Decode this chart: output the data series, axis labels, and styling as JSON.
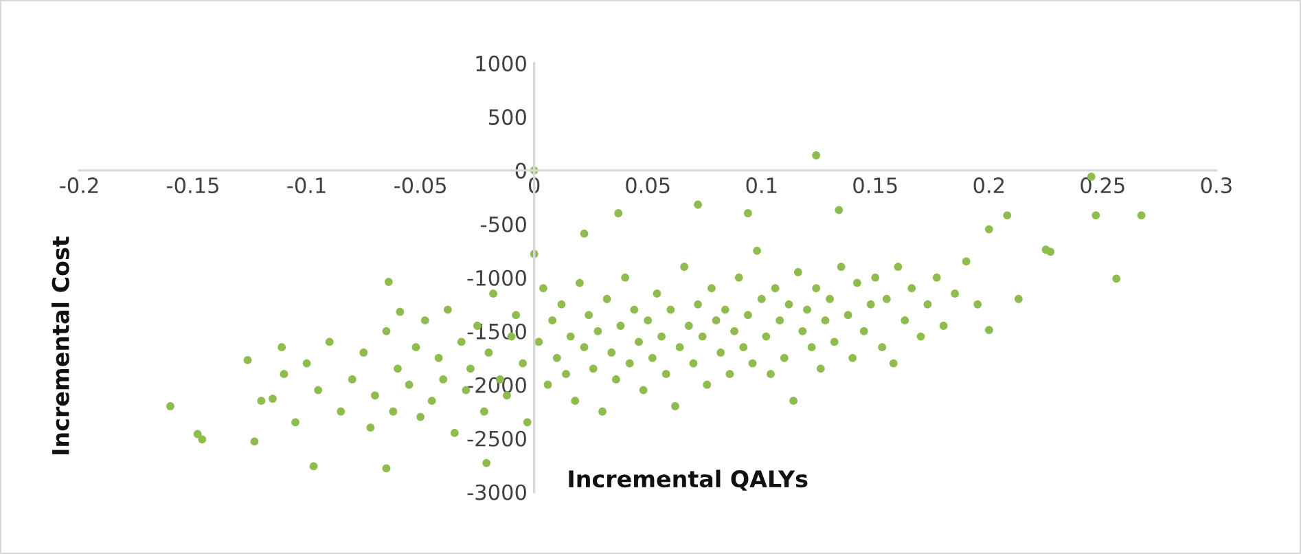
{
  "chart_data": {
    "type": "scatter",
    "xlabel": "Incremental QALYs",
    "ylabel": "Incremental Cost",
    "xlim": [
      -0.2,
      0.3
    ],
    "xticks": [
      -0.2,
      -0.15,
      -0.1,
      -0.05,
      0,
      0.05,
      0.1,
      0.15,
      0.2,
      0.25,
      0.3
    ],
    "ylim": [
      -3000,
      1000
    ],
    "yticks": [
      -3000,
      -2500,
      -2000,
      -1500,
      -1000,
      -500,
      0,
      500,
      1000
    ],
    "grid": false,
    "marker": "circle",
    "series": [
      {
        "color": "#8fbc4f",
        "x": [
          0,
          0.124,
          0.245,
          0.247,
          0.267,
          0.256,
          0.208,
          0.2,
          0.225,
          0.227,
          0.2,
          0.213,
          -0.16,
          -0.148,
          -0.146,
          -0.123,
          -0.097,
          -0.065,
          -0.021,
          -0.126,
          -0.111,
          -0.115,
          -0.064,
          -0.059,
          0,
          0.022,
          0.037,
          0.072,
          0.094,
          0.134,
          -0.12,
          -0.11,
          -0.105,
          -0.1,
          -0.095,
          -0.09,
          -0.085,
          -0.08,
          -0.075,
          -0.072,
          -0.07,
          -0.065,
          -0.062,
          -0.06,
          -0.055,
          -0.052,
          -0.05,
          -0.048,
          -0.045,
          -0.042,
          -0.04,
          -0.038,
          -0.035,
          -0.032,
          -0.03,
          -0.028,
          -0.025,
          -0.022,
          -0.02,
          -0.018,
          -0.015,
          -0.012,
          -0.01,
          -0.008,
          -0.005,
          -0.003,
          0.002,
          0.004,
          0.006,
          0.008,
          0.01,
          0.012,
          0.014,
          0.016,
          0.018,
          0.02,
          0.022,
          0.024,
          0.026,
          0.028,
          0.03,
          0.032,
          0.034,
          0.036,
          0.038,
          0.04,
          0.042,
          0.044,
          0.046,
          0.048,
          0.05,
          0.052,
          0.054,
          0.056,
          0.058,
          0.06,
          0.062,
          0.064,
          0.066,
          0.068,
          0.07,
          0.072,
          0.074,
          0.076,
          0.078,
          0.08,
          0.082,
          0.084,
          0.086,
          0.088,
          0.09,
          0.092,
          0.094,
          0.096,
          0.098,
          0.1,
          0.102,
          0.104,
          0.106,
          0.108,
          0.11,
          0.112,
          0.114,
          0.116,
          0.118,
          0.12,
          0.122,
          0.124,
          0.126,
          0.128,
          0.13,
          0.132,
          0.135,
          0.138,
          0.14,
          0.142,
          0.145,
          0.148,
          0.15,
          0.153,
          0.155,
          0.158,
          0.16,
          0.163,
          0.166,
          0.17,
          0.173,
          0.177,
          0.18,
          0.185,
          0.19,
          0.195
        ],
        "values": [
          0,
          140,
          -60,
          -420,
          -420,
          -1010,
          -420,
          -550,
          -740,
          -760,
          -1490,
          -1200,
          -2200,
          -2460,
          -2510,
          -2530,
          -2760,
          -2780,
          -2730,
          -1770,
          -1650,
          -2130,
          -1040,
          -1320,
          -780,
          -590,
          -400,
          -320,
          -400,
          -370,
          -2150,
          -1900,
          -2350,
          -1800,
          -2050,
          -1600,
          -2250,
          -1950,
          -1700,
          -2400,
          -2100,
          -1500,
          -2250,
          -1850,
          -2000,
          -1650,
          -2300,
          -1400,
          -2150,
          -1750,
          -1950,
          -1300,
          -2450,
          -1600,
          -2050,
          -1850,
          -1450,
          -2250,
          -1700,
          -1150,
          -1950,
          -2100,
          -1550,
          -1350,
          -1800,
          -2350,
          -1600,
          -1100,
          -2000,
          -1400,
          -1750,
          -1250,
          -1900,
          -1550,
          -2150,
          -1050,
          -1650,
          -1350,
          -1850,
          -1500,
          -2250,
          -1200,
          -1700,
          -1950,
          -1450,
          -1000,
          -1800,
          -1300,
          -1600,
          -2050,
          -1400,
          -1750,
          -1150,
          -1550,
          -1900,
          -1300,
          -2200,
          -1650,
          -900,
          -1450,
          -1800,
          -1250,
          -1550,
          -2000,
          -1100,
          -1400,
          -1700,
          -1300,
          -1900,
          -1500,
          -1000,
          -1650,
          -1350,
          -1800,
          -750,
          -1200,
          -1550,
          -1900,
          -1100,
          -1400,
          -1750,
          -1250,
          -2150,
          -950,
          -1500,
          -1300,
          -1650,
          -1100,
          -1850,
          -1400,
          -1200,
          -1600,
          -900,
          -1350,
          -1750,
          -1050,
          -1500,
          -1250,
          -1000,
          -1650,
          -1200,
          -1800,
          -900,
          -1400,
          -1100,
          -1550,
          -1250,
          -1000,
          -1450,
          -1150,
          -850,
          -1250
        ]
      }
    ]
  }
}
